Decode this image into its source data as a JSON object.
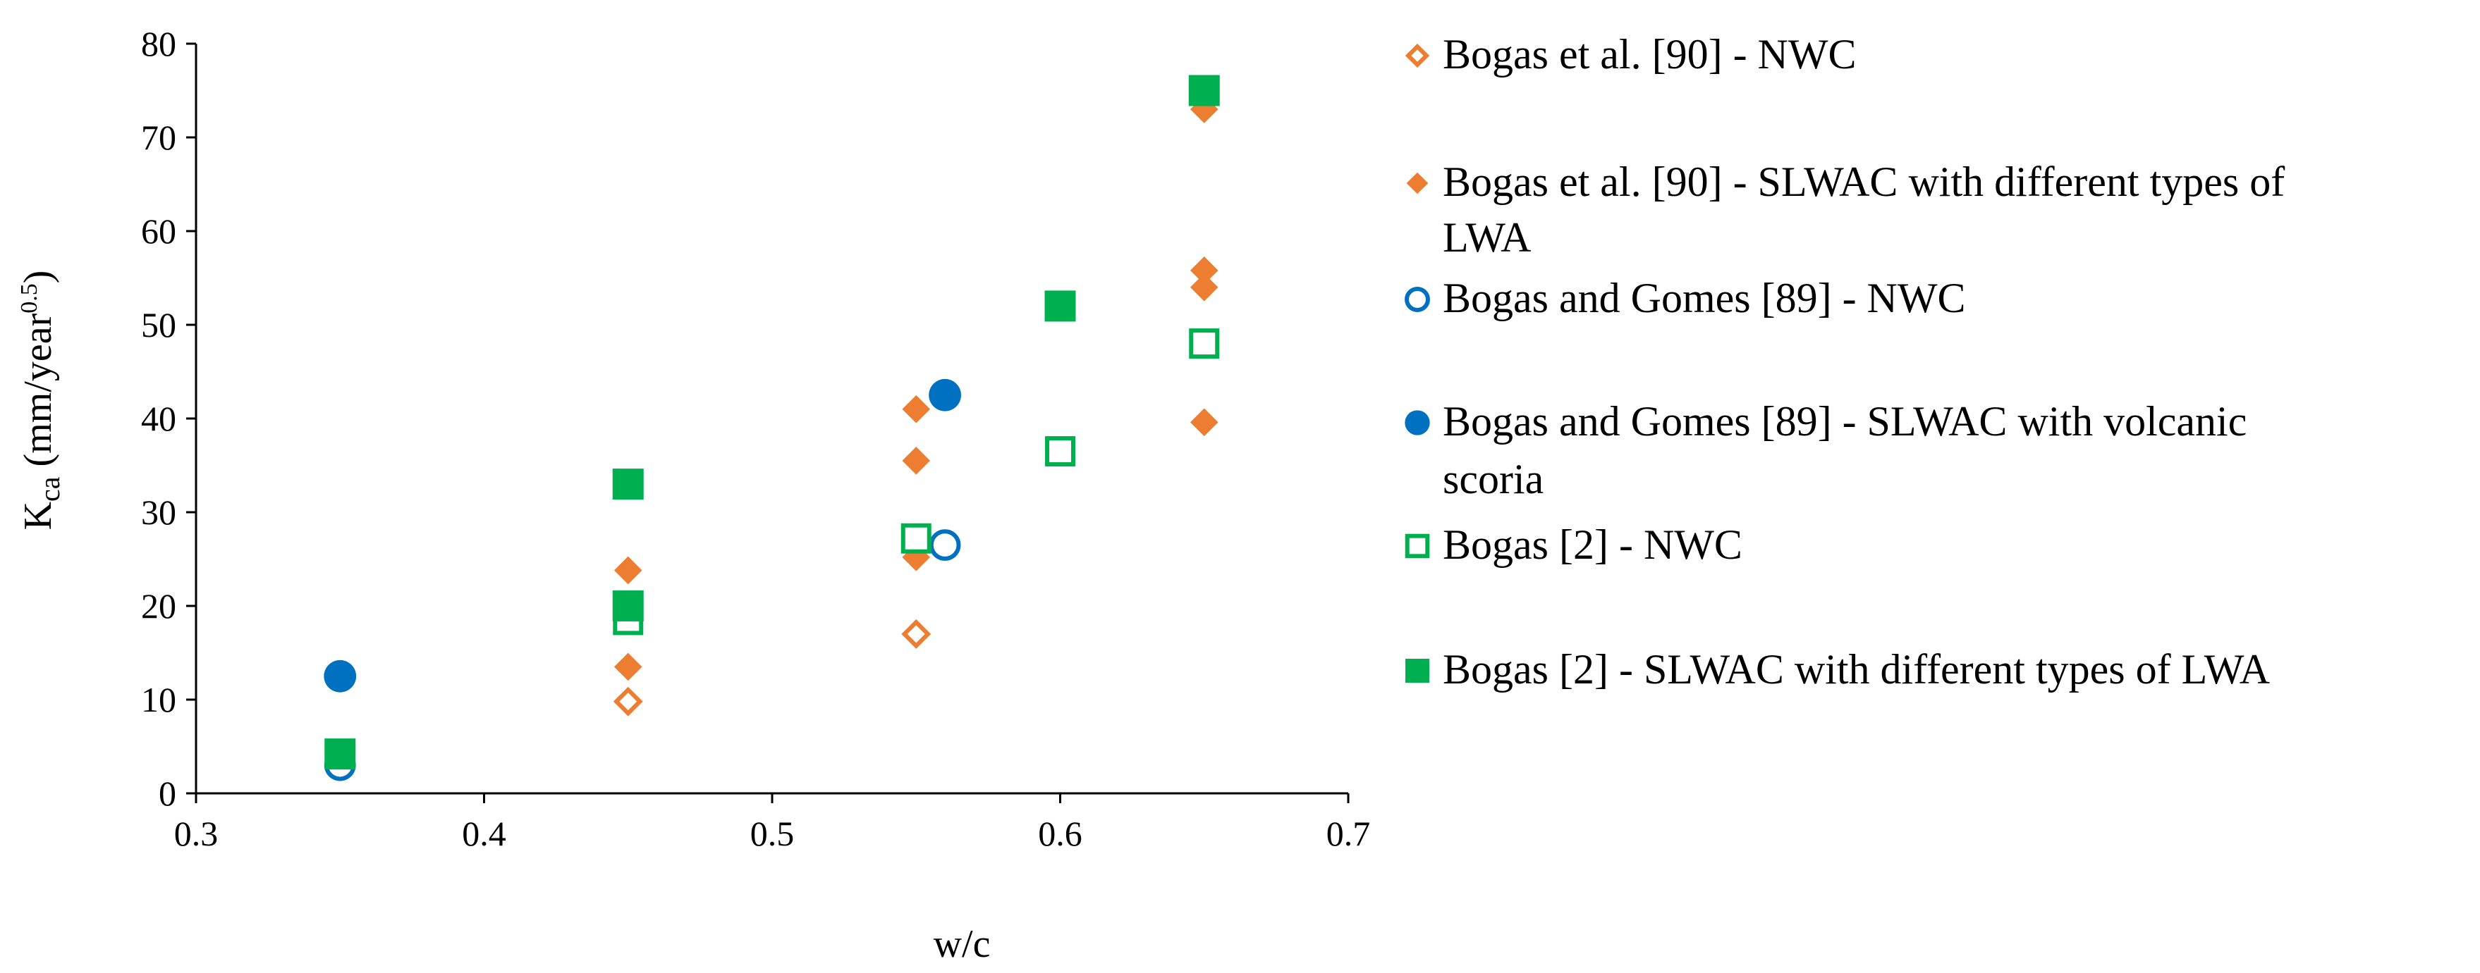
{
  "chart_data": {
    "type": "scatter",
    "xlabel": "w/c",
    "ylabel_main": "K",
    "ylabel_sub": "ca",
    "ylabel_unit_open": " (mm/year",
    "ylabel_sup": "0.5",
    "ylabel_unit_close": ")",
    "xlim": [
      0.3,
      0.7
    ],
    "ylim": [
      0,
      80
    ],
    "xticks": [
      "0.3",
      "0.4",
      "0.5",
      "0.6",
      "0.7"
    ],
    "yticks": [
      "0",
      "10",
      "20",
      "30",
      "40",
      "50",
      "60",
      "70",
      "80"
    ],
    "grid": false,
    "legend_position": "right",
    "series": [
      {
        "name": "Bogas et al. [90] - NWC",
        "legend_lines": [
          "Bogas et al. [90] - NWC"
        ],
        "marker": "diamond",
        "filled": false,
        "color": "#ED7D31",
        "points": [
          [
            0.45,
            9.8
          ],
          [
            0.55,
            17.0
          ]
        ]
      },
      {
        "name": "Bogas et al. [90] - SLWAC with different types of LWA",
        "legend_lines": [
          "Bogas et al. [90] - SLWAC with different types of",
          "LWA"
        ],
        "marker": "diamond",
        "filled": true,
        "color": "#ED7D31",
        "points": [
          [
            0.45,
            13.5
          ],
          [
            0.45,
            18.5
          ],
          [
            0.45,
            23.8
          ],
          [
            0.55,
            25.2
          ],
          [
            0.55,
            35.5
          ],
          [
            0.55,
            41.0
          ],
          [
            0.65,
            39.6
          ],
          [
            0.65,
            54.0
          ],
          [
            0.65,
            55.8
          ],
          [
            0.65,
            73.0
          ]
        ]
      },
      {
        "name": "Bogas and Gomes [89] - NWC",
        "legend_lines": [
          "Bogas and Gomes [89] - NWC"
        ],
        "marker": "circle",
        "filled": false,
        "color": "#0070C0",
        "points": [
          [
            0.35,
            3.0
          ],
          [
            0.56,
            26.5
          ]
        ]
      },
      {
        "name": "Bogas and Gomes [89] - SLWAC with volcanic scoria",
        "legend_lines": [
          "Bogas and Gomes [89] - SLWAC with volcanic",
          "scoria"
        ],
        "marker": "circle",
        "filled": true,
        "color": "#0070C0",
        "points": [
          [
            0.35,
            12.5
          ],
          [
            0.56,
            42.5
          ]
        ]
      },
      {
        "name": "Bogas [2] - NWC",
        "legend_lines": [
          "Bogas [2] - NWC"
        ],
        "marker": "square",
        "filled": false,
        "color": "#00B050",
        "points": [
          [
            0.45,
            18.5
          ],
          [
            0.55,
            27.2
          ],
          [
            0.6,
            36.5
          ],
          [
            0.65,
            48.0
          ]
        ]
      },
      {
        "name": "Bogas [2] - SLWAC with different types of LWA",
        "legend_lines": [
          "Bogas [2] - SLWAC with different types of LWA"
        ],
        "marker": "square",
        "filled": true,
        "color": "#00B050",
        "points": [
          [
            0.35,
            4.2
          ],
          [
            0.45,
            20.0
          ],
          [
            0.45,
            33.0
          ],
          [
            0.6,
            52.0
          ],
          [
            0.65,
            75.0
          ]
        ]
      }
    ]
  }
}
